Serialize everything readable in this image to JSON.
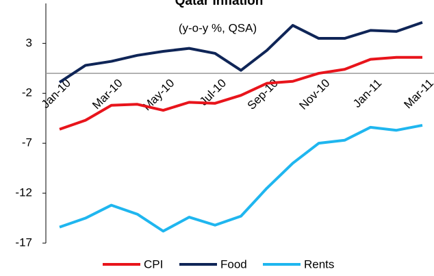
{
  "chart_data": {
    "type": "line",
    "title": "Qatar Inflation",
    "subtitle": "(y-o-y %, QSA)",
    "categories": [
      "Jan-10",
      null,
      "Mar-10",
      null,
      "May-10",
      null,
      "Jul-10",
      null,
      "Sep-10",
      null,
      "Nov-10",
      null,
      "Jan-11",
      null,
      "Mar-11"
    ],
    "series": [
      {
        "name": "CPI",
        "color": "#e8141b",
        "values": [
          -5.6,
          -4.7,
          -3.2,
          -3.1,
          -3.7,
          -2.9,
          -3.0,
          -2.2,
          -1.0,
          -0.8,
          0.0,
          0.4,
          1.4,
          1.6,
          1.6
        ]
      },
      {
        "name": "Food",
        "color": "#0f2557",
        "values": [
          -0.9,
          0.8,
          1.2,
          1.8,
          2.2,
          2.5,
          2.0,
          0.3,
          2.3,
          4.8,
          3.5,
          3.5,
          4.3,
          4.2,
          5.1
        ]
      },
      {
        "name": "Rents",
        "color": "#1fb6ef",
        "values": [
          -15.4,
          -14.5,
          -13.2,
          -14.1,
          -15.8,
          -14.4,
          -15.2,
          -14.3,
          -11.5,
          -9.0,
          -7.0,
          -6.7,
          -5.4,
          -5.7,
          -5.2
        ]
      }
    ],
    "ylim": [
      -17,
      7
    ],
    "yticks": [
      -17,
      -12,
      -7,
      -2,
      3
    ],
    "legend": "bottom"
  }
}
